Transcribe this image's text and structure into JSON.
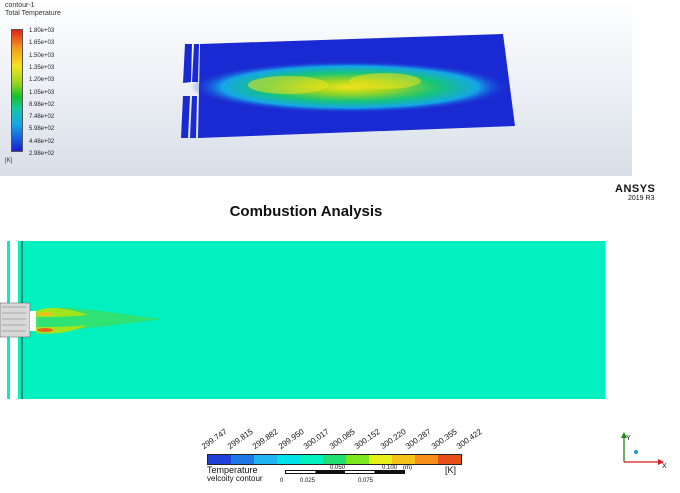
{
  "top_view": {
    "contour_name": "contour-1",
    "variable": "Total Temperature",
    "colorbar_labels": [
      "1.80e+03",
      "1.65e+03",
      "1.50e+03",
      "1.35e+03",
      "1.20e+03",
      "1.05e+03",
      "8.98e+02",
      "7.48e+02",
      "5.98e+02",
      "4.48e+02",
      "2.98e+02"
    ],
    "unit": "[K]"
  },
  "brand": {
    "name": "ANSYS",
    "version": "2019 R3"
  },
  "title": "Combustion Analysis",
  "legend": {
    "ticks": [
      "299.747",
      "299.815",
      "299.882",
      "299.950",
      "300.017",
      "300.085",
      "300.152",
      "300.220",
      "300.287",
      "300.355",
      "300.422"
    ],
    "colors": [
      "#1f3fd8",
      "#1f78e6",
      "#20b4f0",
      "#00e0e8",
      "#00f0c0",
      "#1fe070",
      "#7de61c",
      "#e8f01a",
      "#f5c21a",
      "#f58f1a",
      "#e84f1a"
    ],
    "label": "Temperature",
    "unit": "[K]",
    "secondary_label": "velcoity contour"
  },
  "scale": {
    "labels": [
      "0",
      "0.050",
      "0.100",
      "(m)",
      "0.025",
      "0.075"
    ]
  }
}
